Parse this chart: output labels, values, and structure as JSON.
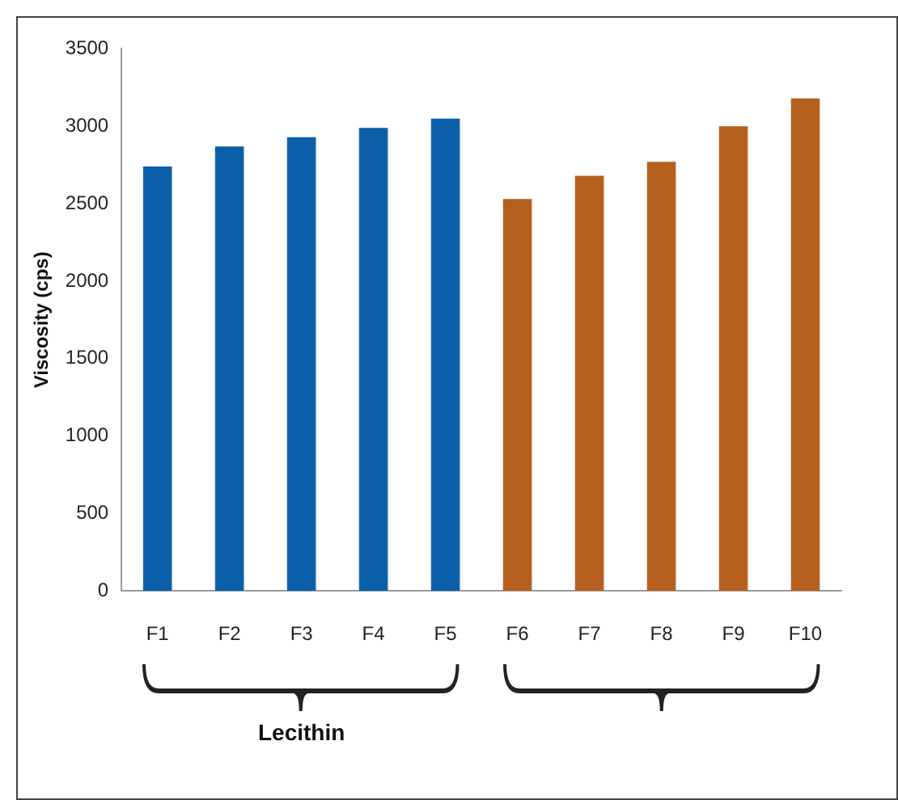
{
  "chart_data": {
    "type": "bar",
    "ylabel": "Viscosity (cps)",
    "categories": [
      "F1",
      "F2",
      "F3",
      "F4",
      "F5",
      "F6",
      "F7",
      "F8",
      "F9",
      "F10"
    ],
    "values": [
      2740,
      2870,
      2930,
      2990,
      3050,
      2530,
      2680,
      2770,
      3000,
      3180
    ],
    "colors": [
      "#0a5fa8",
      "#0a5fa8",
      "#0a5fa8",
      "#0a5fa8",
      "#0a5fa8",
      "#b5601f",
      "#b5601f",
      "#b5601f",
      "#b5601f",
      "#b5601f"
    ],
    "ylim": [
      0,
      3500
    ],
    "yticks": [
      0,
      500,
      1000,
      1500,
      2000,
      2500,
      3000,
      3500
    ],
    "grid": false,
    "legend": false,
    "annotations": [
      "Lecithin"
    ]
  }
}
